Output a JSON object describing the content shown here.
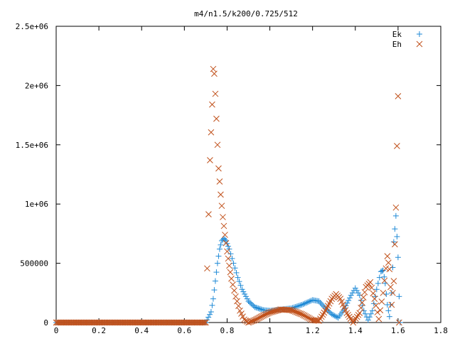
{
  "chart_data": {
    "type": "scatter",
    "title": "m4/n1.5/k200/0.725/512",
    "xlabel": "",
    "ylabel": "",
    "xlim": [
      0,
      1.8
    ],
    "ylim": [
      0,
      2500000
    ],
    "x_ticks": [
      "0",
      "0.2",
      "0.4",
      "0.6",
      "0.8",
      "1",
      "1.2",
      "1.4",
      "1.6",
      "1.8"
    ],
    "y_ticks": [
      "0",
      "500000",
      "1e+06",
      "1.5e+06",
      "2e+06",
      "2.5e+06"
    ],
    "legend_position": "top-right",
    "grid": false,
    "series": [
      {
        "name": "Ek",
        "marker": "plus",
        "color": "#1f8ad6",
        "points": [
          [
            0.0,
            0
          ],
          [
            0.1,
            0
          ],
          [
            0.2,
            0
          ],
          [
            0.3,
            0
          ],
          [
            0.4,
            0
          ],
          [
            0.5,
            0
          ],
          [
            0.6,
            0
          ],
          [
            0.7,
            0
          ],
          [
            0.725,
            90000
          ],
          [
            0.735,
            200000
          ],
          [
            0.745,
            350000
          ],
          [
            0.755,
            500000
          ],
          [
            0.765,
            620000
          ],
          [
            0.775,
            690000
          ],
          [
            0.785,
            710000
          ],
          [
            0.795,
            690000
          ],
          [
            0.81,
            620000
          ],
          [
            0.83,
            500000
          ],
          [
            0.85,
            380000
          ],
          [
            0.87,
            280000
          ],
          [
            0.9,
            180000
          ],
          [
            0.93,
            130000
          ],
          [
            0.97,
            105000
          ],
          [
            1.0,
            100000
          ],
          [
            1.05,
            110000
          ],
          [
            1.1,
            120000
          ],
          [
            1.15,
            150000
          ],
          [
            1.2,
            190000
          ],
          [
            1.23,
            180000
          ],
          [
            1.26,
            120000
          ],
          [
            1.29,
            70000
          ],
          [
            1.32,
            40000
          ],
          [
            1.35,
            120000
          ],
          [
            1.38,
            230000
          ],
          [
            1.4,
            290000
          ],
          [
            1.42,
            230000
          ],
          [
            1.44,
            100000
          ],
          [
            1.46,
            20000
          ],
          [
            1.48,
            100000
          ],
          [
            1.5,
            280000
          ],
          [
            1.52,
            430000
          ],
          [
            1.53,
            440000
          ],
          [
            1.54,
            330000
          ],
          [
            1.55,
            150000
          ],
          [
            1.56,
            50000
          ],
          [
            1.57,
            250000
          ],
          [
            1.58,
            680000
          ],
          [
            1.59,
            900000
          ],
          [
            1.6,
            550000
          ],
          [
            1.605,
            220000
          ],
          [
            1.61,
            0
          ]
        ]
      },
      {
        "name": "Eh",
        "marker": "cross",
        "color": "#c0501a",
        "points": [
          [
            0.0,
            0
          ],
          [
            0.1,
            0
          ],
          [
            0.2,
            0
          ],
          [
            0.3,
            0
          ],
          [
            0.4,
            0
          ],
          [
            0.5,
            0
          ],
          [
            0.6,
            0
          ],
          [
            0.7,
            0
          ],
          [
            0.72,
            1370000
          ],
          [
            0.73,
            1840000
          ],
          [
            0.735,
            2140000
          ],
          [
            0.74,
            2100000
          ],
          [
            0.745,
            1930000
          ],
          [
            0.75,
            1720000
          ],
          [
            0.755,
            1500000
          ],
          [
            0.76,
            1300000
          ],
          [
            0.77,
            1080000
          ],
          [
            0.78,
            890000
          ],
          [
            0.79,
            740000
          ],
          [
            0.8,
            600000
          ],
          [
            0.81,
            480000
          ],
          [
            0.82,
            370000
          ],
          [
            0.84,
            220000
          ],
          [
            0.86,
            100000
          ],
          [
            0.88,
            25000
          ],
          [
            0.9,
            0
          ],
          [
            0.93,
            20000
          ],
          [
            0.97,
            60000
          ],
          [
            1.0,
            85000
          ],
          [
            1.05,
            110000
          ],
          [
            1.1,
            105000
          ],
          [
            1.15,
            70000
          ],
          [
            1.2,
            20000
          ],
          [
            1.23,
            15000
          ],
          [
            1.26,
            100000
          ],
          [
            1.29,
            200000
          ],
          [
            1.31,
            240000
          ],
          [
            1.33,
            200000
          ],
          [
            1.36,
            80000
          ],
          [
            1.39,
            0
          ],
          [
            1.42,
            80000
          ],
          [
            1.45,
            300000
          ],
          [
            1.47,
            340000
          ],
          [
            1.49,
            200000
          ],
          [
            1.51,
            30000
          ],
          [
            1.53,
            250000
          ],
          [
            1.55,
            560000
          ],
          [
            1.56,
            450000
          ],
          [
            1.57,
            150000
          ],
          [
            1.58,
            350000
          ],
          [
            1.59,
            970000
          ],
          [
            1.595,
            1490000
          ],
          [
            1.6,
            1910000
          ],
          [
            1.605,
            0
          ]
        ]
      }
    ]
  }
}
